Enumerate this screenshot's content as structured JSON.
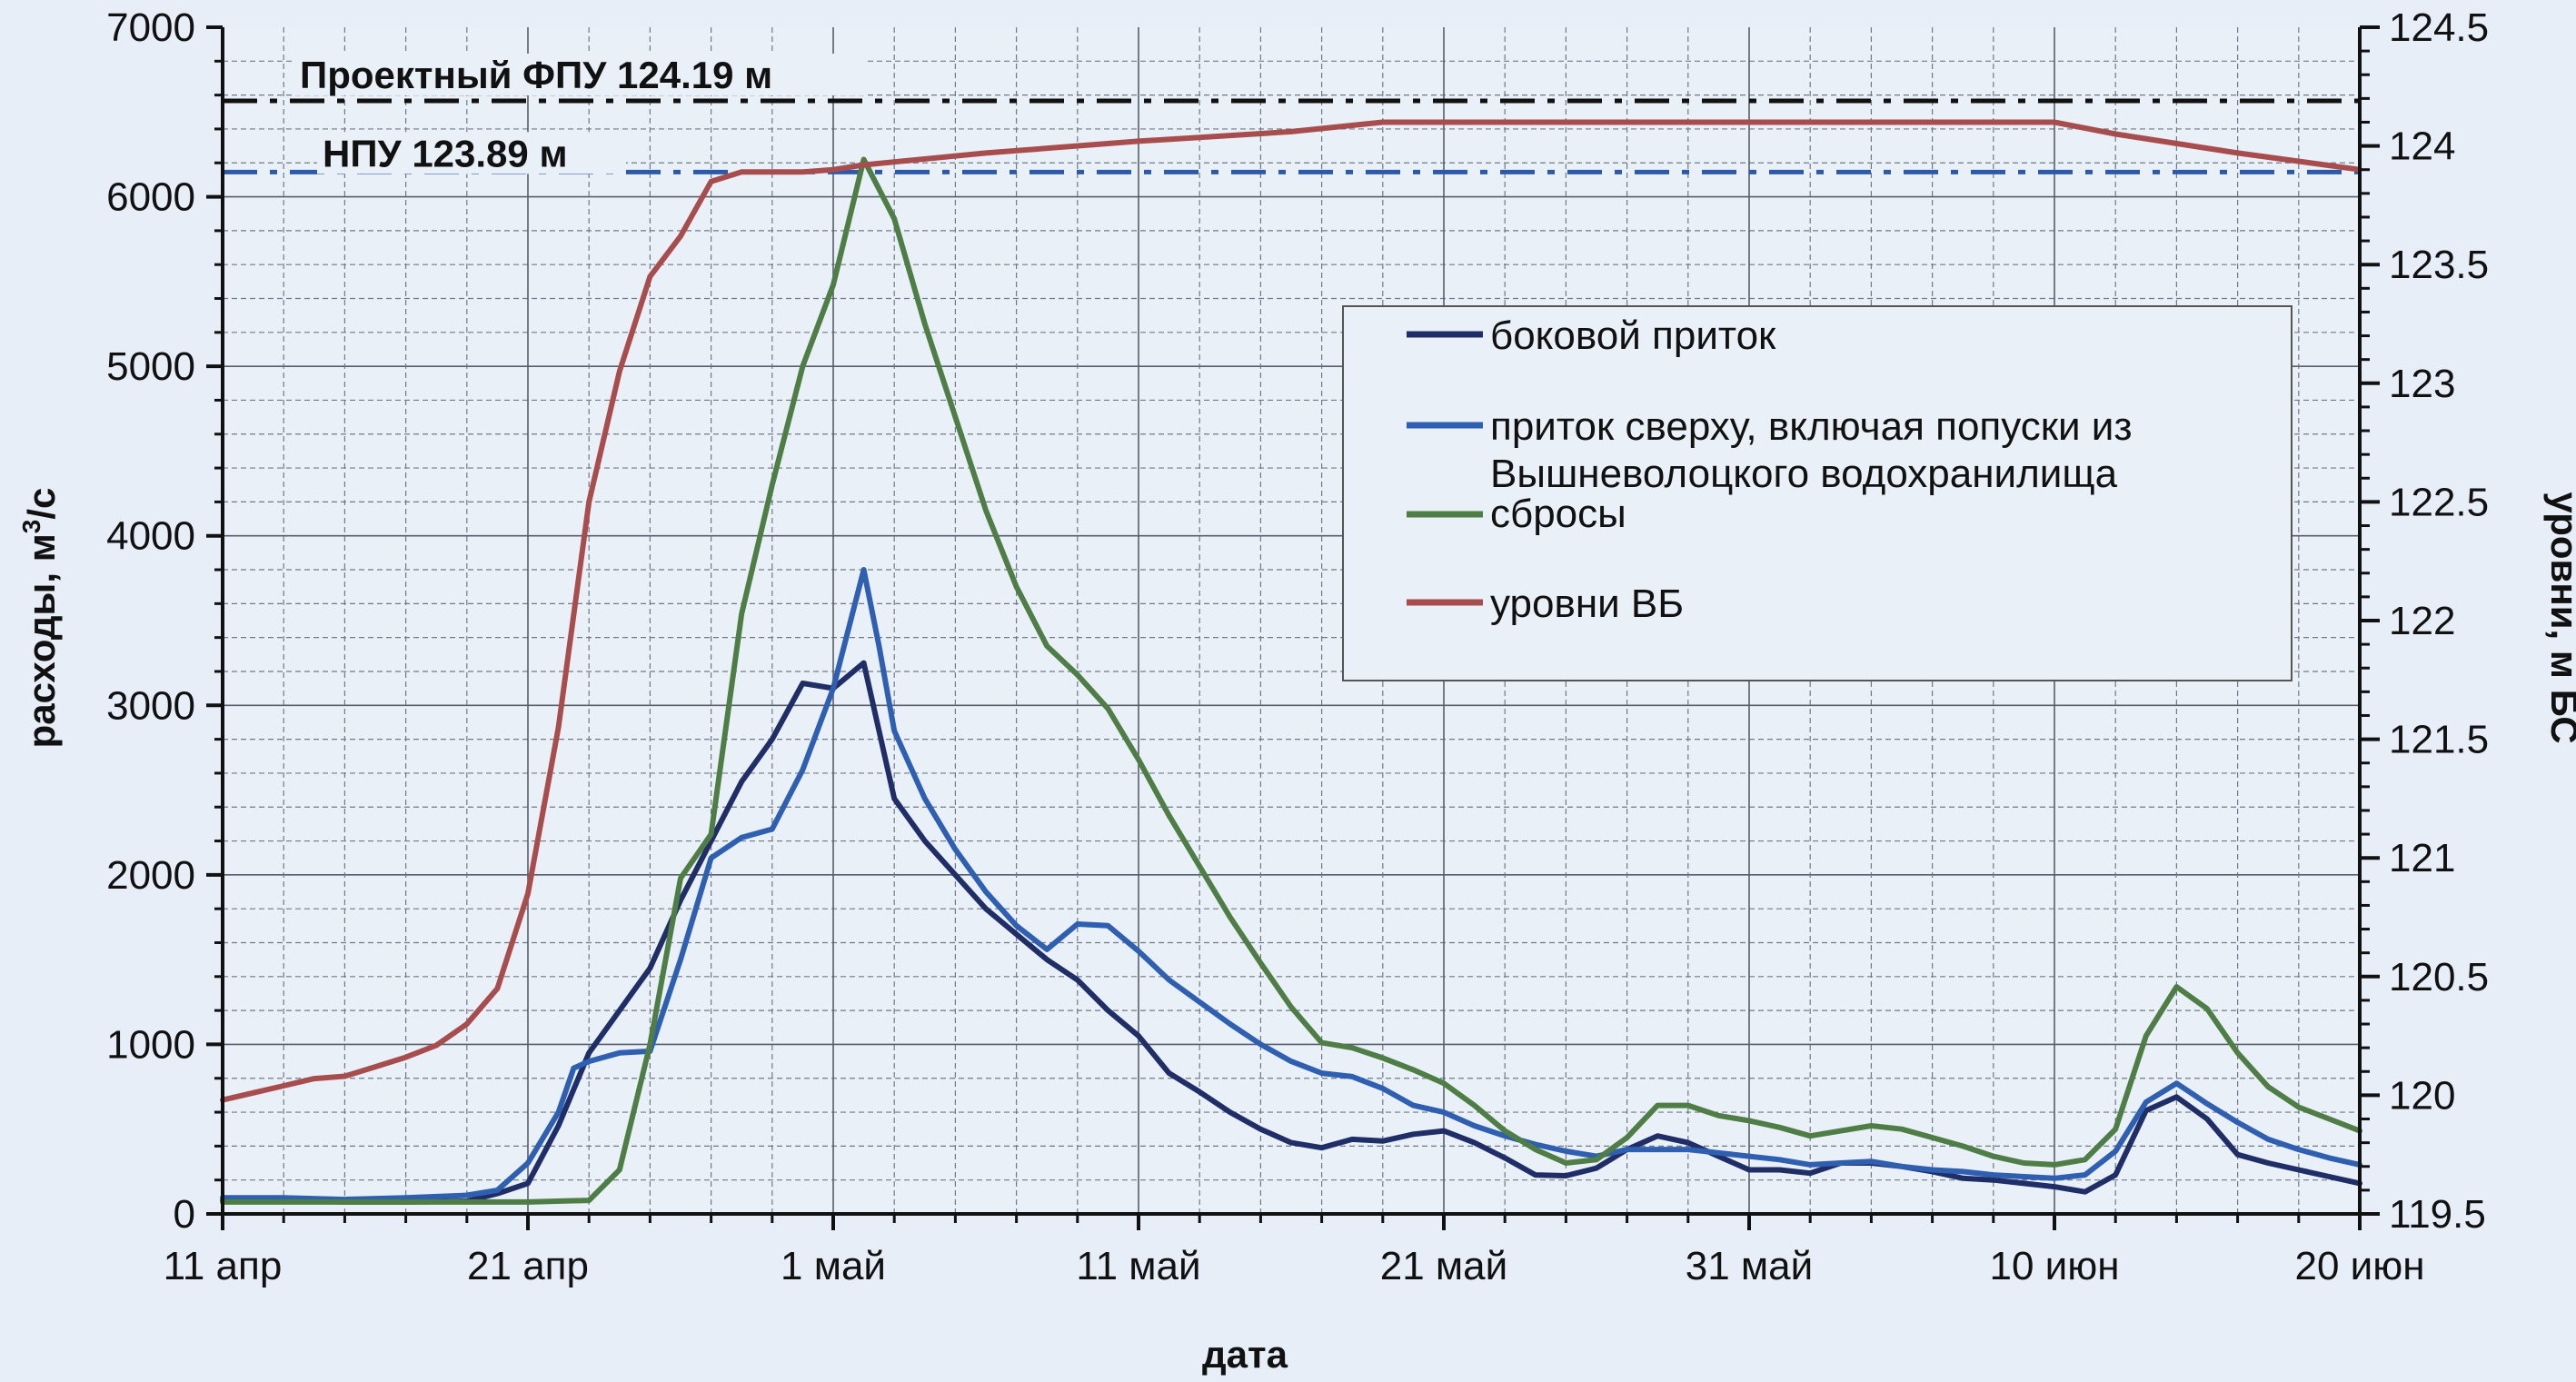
{
  "chart_data": {
    "type": "line",
    "title": "",
    "xlabel": "дата",
    "ylabel_left_prefix": "расходы, м",
    "ylabel_left_sup": "3",
    "ylabel_left_suffix": "/с",
    "ylabel_right": "уровни, м БС",
    "x_start": "11 апр",
    "x_end": "20 июн",
    "xlim_days": [
      0,
      70
    ],
    "ylim_left": [
      0,
      7000
    ],
    "ylim_right": [
      119.5,
      124.5
    ],
    "grid": true,
    "x_ticks": [
      {
        "day": 0,
        "label": "11 апр"
      },
      {
        "day": 10,
        "label": "21 апр"
      },
      {
        "day": 20,
        "label": "1 май"
      },
      {
        "day": 30,
        "label": "11 май"
      },
      {
        "day": 40,
        "label": "21 май"
      },
      {
        "day": 50,
        "label": "31 май"
      },
      {
        "day": 60,
        "label": "10 июн"
      },
      {
        "day": 70,
        "label": "20 июн"
      }
    ],
    "y_left_ticks": [
      "0",
      "1000",
      "2000",
      "3000",
      "4000",
      "5000",
      "6000",
      "7000"
    ],
    "y_right_ticks": [
      "119.5",
      "120",
      "120.5",
      "121",
      "121.5",
      "122",
      "122.5",
      "123",
      "123.5",
      "124",
      "124.5"
    ],
    "reference_lines": [
      {
        "label": "Проектный ФПУ 124.19 м",
        "level": 124.19,
        "color": "#111111",
        "style": "dash-dot"
      },
      {
        "label": "НПУ 123.89 м",
        "level": 123.89,
        "color": "#2c5aa8",
        "style": "dash-dot"
      }
    ],
    "series": [
      {
        "name": "боковой приток",
        "color": "#1f2e66",
        "axis": "left",
        "points": [
          [
            0,
            80
          ],
          [
            2,
            80
          ],
          [
            4,
            70
          ],
          [
            6,
            70
          ],
          [
            8,
            75
          ],
          [
            9,
            120
          ],
          [
            10,
            180
          ],
          [
            11,
            520
          ],
          [
            12,
            950
          ],
          [
            13,
            1200
          ],
          [
            14,
            1450
          ],
          [
            15,
            1850
          ],
          [
            16,
            2200
          ],
          [
            17,
            2550
          ],
          [
            18,
            2800
          ],
          [
            19,
            3130
          ],
          [
            20,
            3100
          ],
          [
            21,
            3250
          ],
          [
            22,
            2450
          ],
          [
            23,
            2200
          ],
          [
            24,
            2000
          ],
          [
            25,
            1800
          ],
          [
            26,
            1650
          ],
          [
            27,
            1500
          ],
          [
            28,
            1380
          ],
          [
            29,
            1200
          ],
          [
            30,
            1050
          ],
          [
            31,
            830
          ],
          [
            32,
            720
          ],
          [
            33,
            600
          ],
          [
            34,
            500
          ],
          [
            35,
            420
          ],
          [
            36,
            390
          ],
          [
            37,
            440
          ],
          [
            38,
            430
          ],
          [
            39,
            470
          ],
          [
            40,
            490
          ],
          [
            41,
            420
          ],
          [
            42,
            330
          ],
          [
            43,
            230
          ],
          [
            44,
            225
          ],
          [
            45,
            270
          ],
          [
            46,
            380
          ],
          [
            47,
            460
          ],
          [
            48,
            420
          ],
          [
            49,
            340
          ],
          [
            50,
            260
          ],
          [
            51,
            260
          ],
          [
            52,
            240
          ],
          [
            53,
            300
          ],
          [
            54,
            300
          ],
          [
            55,
            280
          ],
          [
            56,
            250
          ],
          [
            57,
            210
          ],
          [
            58,
            200
          ],
          [
            59,
            180
          ],
          [
            60,
            160
          ],
          [
            61,
            130
          ],
          [
            62,
            230
          ],
          [
            63,
            610
          ],
          [
            64,
            690
          ],
          [
            65,
            560
          ],
          [
            66,
            350
          ],
          [
            67,
            300
          ],
          [
            68,
            260
          ],
          [
            69,
            220
          ],
          [
            70,
            180
          ]
        ]
      },
      {
        "name": "приток сверху, включая попуски из Вышневолоцкого водохранилища",
        "color": "#2f5fb0",
        "axis": "left",
        "points": [
          [
            0,
            95
          ],
          [
            2,
            95
          ],
          [
            4,
            85
          ],
          [
            6,
            95
          ],
          [
            8,
            110
          ],
          [
            9,
            140
          ],
          [
            10,
            300
          ],
          [
            11,
            600
          ],
          [
            11.5,
            860
          ],
          [
            12,
            900
          ],
          [
            13,
            950
          ],
          [
            14,
            960
          ],
          [
            15,
            1500
          ],
          [
            16,
            2100
          ],
          [
            17,
            2220
          ],
          [
            18,
            2270
          ],
          [
            19,
            2620
          ],
          [
            20,
            3100
          ],
          [
            21,
            3800
          ],
          [
            21.5,
            3350
          ],
          [
            22,
            2850
          ],
          [
            23,
            2450
          ],
          [
            24,
            2150
          ],
          [
            25,
            1900
          ],
          [
            26,
            1700
          ],
          [
            27,
            1560
          ],
          [
            28,
            1710
          ],
          [
            29,
            1700
          ],
          [
            30,
            1550
          ],
          [
            31,
            1380
          ],
          [
            32,
            1250
          ],
          [
            33,
            1120
          ],
          [
            34,
            1000
          ],
          [
            35,
            900
          ],
          [
            36,
            830
          ],
          [
            37,
            810
          ],
          [
            38,
            740
          ],
          [
            39,
            640
          ],
          [
            40,
            600
          ],
          [
            41,
            520
          ],
          [
            42,
            460
          ],
          [
            43,
            410
          ],
          [
            44,
            370
          ],
          [
            45,
            340
          ],
          [
            46,
            380
          ],
          [
            47,
            380
          ],
          [
            48,
            380
          ],
          [
            49,
            360
          ],
          [
            50,
            340
          ],
          [
            51,
            320
          ],
          [
            52,
            290
          ],
          [
            53,
            300
          ],
          [
            54,
            310
          ],
          [
            55,
            280
          ],
          [
            56,
            260
          ],
          [
            57,
            250
          ],
          [
            58,
            230
          ],
          [
            59,
            220
          ],
          [
            60,
            210
          ],
          [
            61,
            230
          ],
          [
            62,
            370
          ],
          [
            63,
            660
          ],
          [
            64,
            770
          ],
          [
            65,
            650
          ],
          [
            66,
            540
          ],
          [
            67,
            440
          ],
          [
            68,
            380
          ],
          [
            69,
            330
          ],
          [
            70,
            290
          ]
        ]
      },
      {
        "name": "сбросы",
        "color": "#4f7d46",
        "axis": "left",
        "points": [
          [
            0,
            70
          ],
          [
            10,
            70
          ],
          [
            12,
            80
          ],
          [
            13,
            260
          ],
          [
            14,
            1000
          ],
          [
            15,
            1980
          ],
          [
            16,
            2240
          ],
          [
            17,
            3540
          ],
          [
            18,
            4300
          ],
          [
            19,
            5000
          ],
          [
            20,
            5480
          ],
          [
            21,
            6220
          ],
          [
            22,
            5870
          ],
          [
            23,
            5250
          ],
          [
            24,
            4700
          ],
          [
            25,
            4150
          ],
          [
            26,
            3700
          ],
          [
            27,
            3350
          ],
          [
            28,
            3180
          ],
          [
            29,
            2980
          ],
          [
            30,
            2680
          ],
          [
            31,
            2350
          ],
          [
            32,
            2050
          ],
          [
            33,
            1750
          ],
          [
            34,
            1480
          ],
          [
            35,
            1220
          ],
          [
            36,
            1010
          ],
          [
            37,
            980
          ],
          [
            38,
            920
          ],
          [
            39,
            850
          ],
          [
            40,
            770
          ],
          [
            41,
            640
          ],
          [
            42,
            490
          ],
          [
            43,
            380
          ],
          [
            44,
            300
          ],
          [
            45,
            320
          ],
          [
            46,
            450
          ],
          [
            47,
            640
          ],
          [
            48,
            640
          ],
          [
            49,
            580
          ],
          [
            50,
            550
          ],
          [
            51,
            510
          ],
          [
            52,
            460
          ],
          [
            53,
            490
          ],
          [
            54,
            520
          ],
          [
            55,
            500
          ],
          [
            56,
            450
          ],
          [
            57,
            400
          ],
          [
            58,
            340
          ],
          [
            59,
            300
          ],
          [
            60,
            290
          ],
          [
            61,
            320
          ],
          [
            62,
            500
          ],
          [
            63,
            1050
          ],
          [
            64,
            1340
          ],
          [
            65,
            1210
          ],
          [
            66,
            950
          ],
          [
            67,
            750
          ],
          [
            68,
            630
          ],
          [
            69,
            560
          ],
          [
            70,
            490
          ]
        ]
      },
      {
        "name": "уровни ВБ",
        "color": "#a84d4d",
        "axis": "right",
        "points": [
          [
            0,
            119.98
          ],
          [
            1,
            120.01
          ],
          [
            2,
            120.04
          ],
          [
            3,
            120.07
          ],
          [
            4,
            120.08
          ],
          [
            5,
            120.12
          ],
          [
            6,
            120.16
          ],
          [
            7,
            120.21
          ],
          [
            8,
            120.3
          ],
          [
            9,
            120.45
          ],
          [
            10,
            120.85
          ],
          [
            11,
            121.55
          ],
          [
            12,
            122.5
          ],
          [
            13,
            123.05
          ],
          [
            14,
            123.45
          ],
          [
            15,
            123.62
          ],
          [
            16,
            123.85
          ],
          [
            17,
            123.89
          ],
          [
            18,
            123.89
          ],
          [
            19,
            123.89
          ],
          [
            20,
            123.9
          ],
          [
            21,
            123.92
          ],
          [
            25,
            123.97
          ],
          [
            30,
            124.02
          ],
          [
            35,
            124.06
          ],
          [
            38,
            124.1
          ],
          [
            40,
            124.1
          ],
          [
            50,
            124.1
          ],
          [
            60,
            124.1
          ],
          [
            62,
            124.05
          ],
          [
            66,
            123.97
          ],
          [
            70,
            123.9
          ]
        ]
      }
    ],
    "legend": {
      "position": "right-center",
      "entries": [
        {
          "color": "#1f2e66",
          "lines": [
            "боковой приток"
          ]
        },
        {
          "color": "#2f5fb0",
          "lines": [
            "приток сверху, включая попуски из",
            "Вышневолоцкого водохранилища"
          ]
        },
        {
          "color": "#4f7d46",
          "lines": [
            "сбросы"
          ]
        },
        {
          "color": "#a84d4d",
          "lines": [
            "уровни ВБ"
          ]
        }
      ]
    }
  }
}
